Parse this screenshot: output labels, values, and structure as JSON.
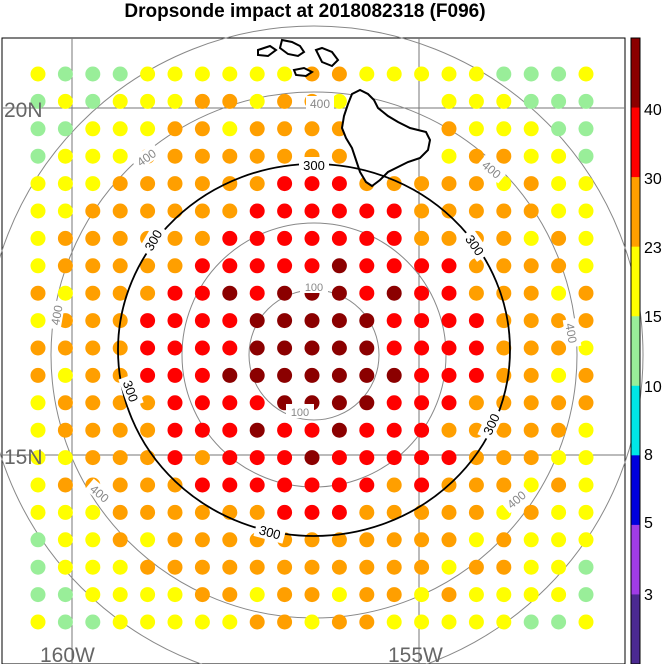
{
  "title": "Dropsonde impact at 2018082318 (F096)",
  "map": {
    "lat_labels": [
      "20N",
      "15N"
    ],
    "lon_labels": [
      "160W",
      "155W"
    ],
    "contour_labels_gray": [
      "100",
      "100",
      "400",
      "400",
      "400",
      "400",
      "400",
      "400",
      "400"
    ],
    "contour_labels_black": [
      "300",
      "300",
      "300",
      "300",
      "300",
      "300"
    ]
  },
  "colorbar": {
    "ticks": [
      "3",
      "5",
      "8",
      "10",
      "15",
      "23",
      "30",
      "40"
    ],
    "colors": [
      "#4b2a91",
      "#a03ce6",
      "#0000dc",
      "#00e6e6",
      "#99ee99",
      "#ffff00",
      "#ff9f00",
      "#ff0000",
      "#8b0000"
    ]
  },
  "colors": {
    "darkred": "#8b0000",
    "red": "#ff0000",
    "orange": "#ff9f00",
    "yellow": "#ffff00",
    "green": "#99ee99",
    "cyan": "#00e6e6"
  }
}
